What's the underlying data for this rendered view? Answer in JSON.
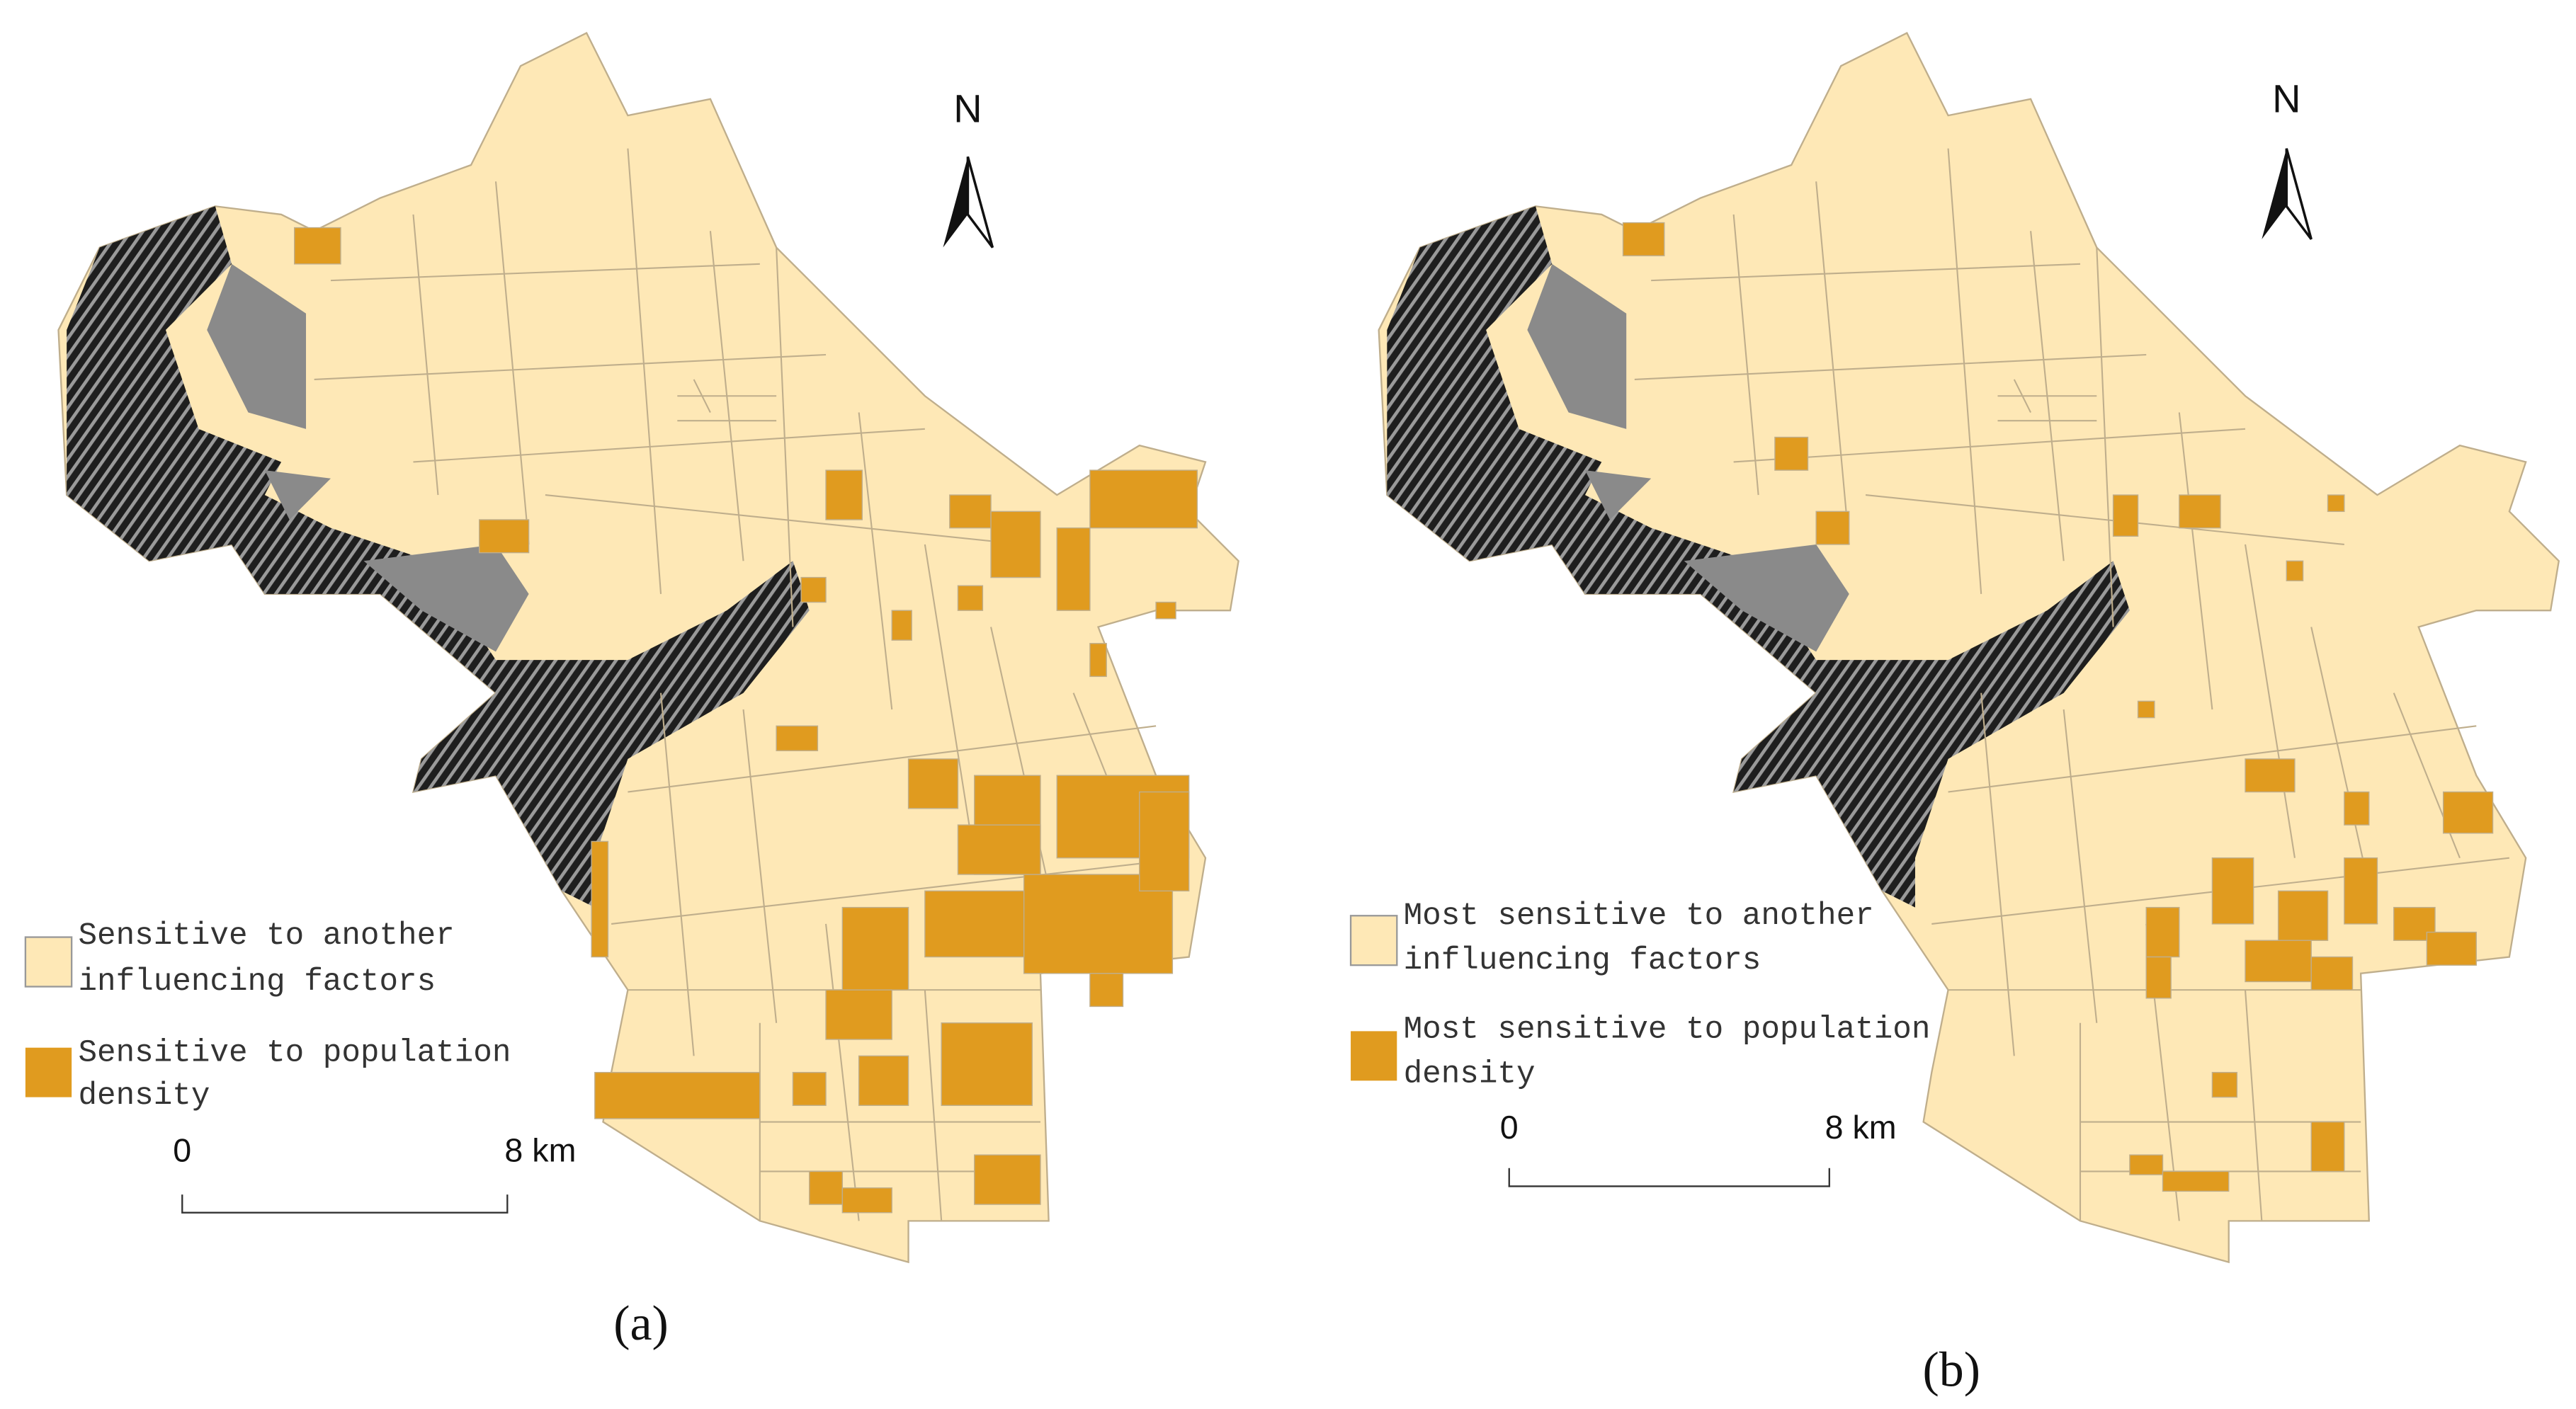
{
  "panels": [
    {
      "north": "N",
      "legend": [
        {
          "lines": [
            "Sensitive to another",
            "influencing factors"
          ]
        },
        {
          "lines": [
            "Sensitive to population",
            "density"
          ]
        }
      ],
      "scale": {
        "start": "0",
        "end": "8 km"
      },
      "caption": "(a)"
    },
    {
      "north": "N",
      "legend": [
        {
          "lines": [
            "Most sensitive to another",
            "influencing factors"
          ]
        },
        {
          "lines": [
            "Most sensitive to population",
            "density"
          ]
        }
      ],
      "scale": {
        "start": "0",
        "end": "8 km"
      },
      "caption": "(b)"
    }
  ]
}
